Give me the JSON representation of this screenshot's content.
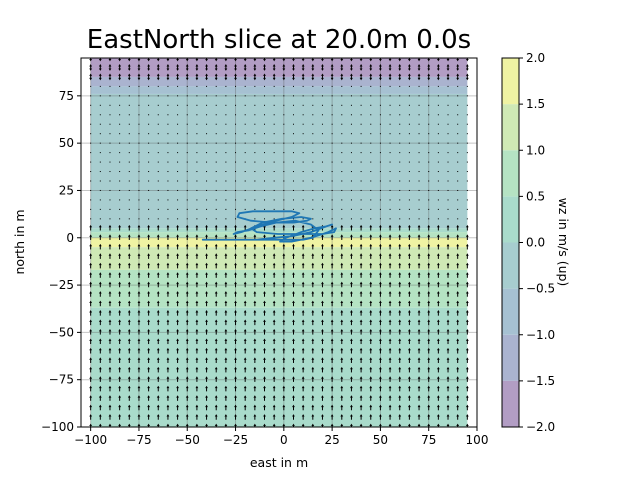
{
  "chart_data": {
    "type": "heatmap",
    "title": "EastNorth slice at 20.0m 0.0s",
    "xlabel": "east in m",
    "ylabel": "north in m",
    "xlim": [
      -105,
      100
    ],
    "ylim": [
      -100,
      95
    ],
    "x_ticks": [
      -100,
      -75,
      -50,
      -25,
      0,
      25,
      50,
      75,
      100
    ],
    "x_tick_labels": [
      "−100",
      "−75",
      "−50",
      "−25",
      "0",
      "25",
      "50",
      "75",
      "100"
    ],
    "y_ticks": [
      -100,
      -75,
      -50,
      -25,
      0,
      25,
      50,
      75
    ],
    "y_tick_labels": [
      "−100",
      "−75",
      "−50",
      "−25",
      "0",
      "25",
      "50",
      "75"
    ],
    "grid": true,
    "field_extent": {
      "east": [
        -100,
        95
      ],
      "north": [
        -100,
        95
      ]
    },
    "bands": [
      {
        "north_from": 85,
        "north_to": 95,
        "level_index": 0
      },
      {
        "north_from": 80,
        "north_to": 85,
        "level_index": 1
      },
      {
        "north_from": 76,
        "north_to": 80,
        "level_index": 2
      },
      {
        "north_from": 5,
        "north_to": 76,
        "level_index": 3
      },
      {
        "north_from": 3,
        "north_to": 5,
        "level_index": 4
      },
      {
        "north_from": 0,
        "north_to": 3,
        "level_index": 5
      },
      {
        "north_from": -5,
        "north_to": 0,
        "level_index": 7
      },
      {
        "north_from": -17,
        "north_to": -5,
        "level_index": 6
      },
      {
        "north_from": -37,
        "north_to": -17,
        "level_index": 5
      },
      {
        "north_from": -100,
        "north_to": -37,
        "level_index": 4
      }
    ],
    "colorbar": {
      "label": "wz in m/s (up)",
      "levels": [
        -2.0,
        -1.5,
        -1.0,
        -0.5,
        0.0,
        0.5,
        1.0,
        1.5,
        2.0
      ],
      "level_tick_labels": [
        "−2.0",
        "−1.5",
        "−1.0",
        "−0.5",
        "0.0",
        "0.5",
        "1.0",
        "1.5",
        "2.0"
      ],
      "colors": [
        "#b29dc4",
        "#aab3cf",
        "#a6c1d2",
        "#a7cdcf",
        "#a9dbcb",
        "#b5e3c3",
        "#cfe9b5",
        "#eff3a3"
      ]
    },
    "quiver": {
      "east_step": 5,
      "north_step": 5,
      "color": "#000000",
      "rules": [
        {
          "north_from": 82,
          "north_to": 95,
          "mode": "both"
        },
        {
          "north_from": 6,
          "north_to": 82,
          "mode": "dot"
        },
        {
          "north_from": -100,
          "north_to": 6,
          "mode": "up"
        }
      ]
    },
    "trajectory": {
      "color": "#1f77b4",
      "east": [
        -42,
        -28,
        -15,
        -5,
        3,
        10,
        15,
        18,
        14,
        6,
        -4,
        -12,
        -18,
        -24,
        -26,
        -22,
        -14,
        -4,
        4,
        8,
        4,
        -6,
        -16,
        -23,
        -24,
        -17,
        -6,
        5,
        12,
        14,
        9,
        -1,
        -11,
        -17,
        -14,
        -3,
        10,
        20,
        26,
        27,
        23,
        14,
        4,
        -2,
        1,
        9,
        16,
        22,
        25,
        22,
        14,
        5,
        -5,
        -14,
        -20
      ],
      "north": [
        -1,
        -1,
        -1,
        -1,
        -1,
        -1,
        0,
        4,
        7,
        9,
        8,
        6,
        4,
        3,
        2,
        3,
        6,
        9,
        11,
        13,
        14,
        14,
        14,
        13,
        11,
        9,
        8,
        8,
        9,
        10,
        11,
        10,
        8,
        5,
        3,
        2,
        2,
        2,
        3,
        5,
        3,
        0,
        -2,
        -2,
        0,
        3,
        5,
        6,
        7,
        6,
        3,
        1,
        0,
        -1,
        -1
      ]
    }
  }
}
